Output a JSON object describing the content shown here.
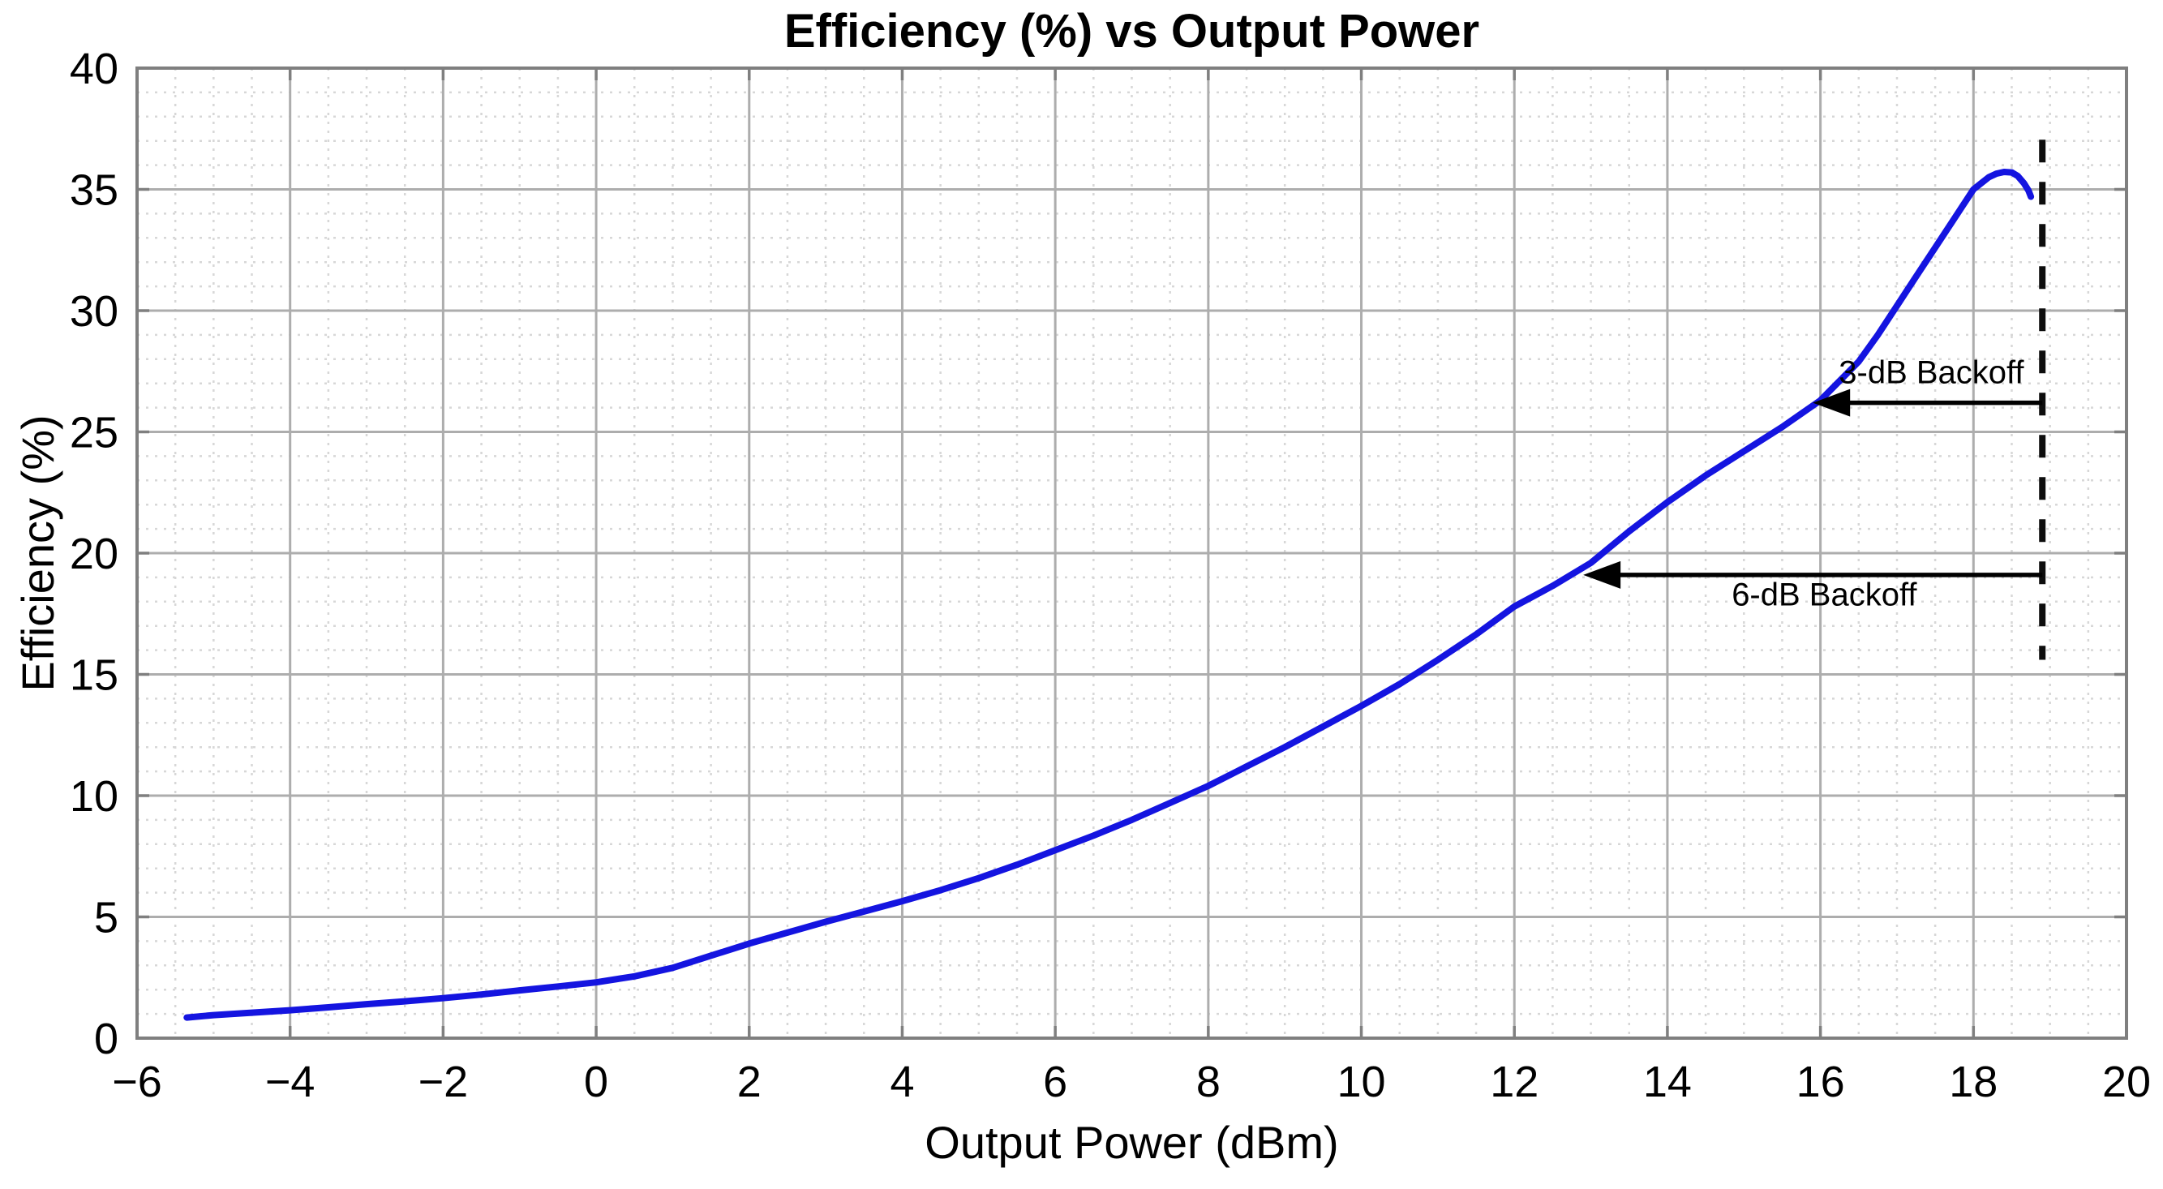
{
  "figure": {
    "background": "#ffffff"
  },
  "chart_data": {
    "type": "line",
    "title": "Efficiency (%) vs Output Power",
    "xlabel": "Output Power (dBm)",
    "ylabel": "Efficiency (%)",
    "xlim": [
      -6,
      20
    ],
    "ylim": [
      0,
      40
    ],
    "x_ticks": [
      -6,
      -4,
      -2,
      0,
      2,
      4,
      6,
      8,
      10,
      12,
      14,
      16,
      18,
      20
    ],
    "x_tick_labels": [
      "−6",
      "−4",
      "−2",
      "0",
      "2",
      "4",
      "6",
      "8",
      "10",
      "12",
      "14",
      "16",
      "18",
      "20"
    ],
    "y_ticks": [
      0,
      5,
      10,
      15,
      20,
      25,
      30,
      35,
      40
    ],
    "y_tick_labels": [
      "0",
      "5",
      "10",
      "15",
      "20",
      "25",
      "30",
      "35",
      "40"
    ],
    "x_minor_step": 0.5,
    "y_minor_step": 1,
    "grid": {
      "major": true,
      "minor": true
    },
    "legend": "none",
    "series": [
      {
        "name": "efficiency-curve",
        "color": "#1414e0",
        "line_width": 8,
        "points": [
          [
            -5.35,
            0.85
          ],
          [
            -5,
            0.95
          ],
          [
            -4.5,
            1.05
          ],
          [
            -4,
            1.15
          ],
          [
            -3.5,
            1.27
          ],
          [
            -3,
            1.4
          ],
          [
            -2.5,
            1.52
          ],
          [
            -2,
            1.65
          ],
          [
            -1.5,
            1.8
          ],
          [
            -1,
            1.97
          ],
          [
            -0.5,
            2.13
          ],
          [
            0,
            2.3
          ],
          [
            0.5,
            2.55
          ],
          [
            1,
            2.9
          ],
          [
            1.5,
            3.4
          ],
          [
            2,
            3.9
          ],
          [
            2.5,
            4.35
          ],
          [
            3,
            4.8
          ],
          [
            3.5,
            5.22
          ],
          [
            4,
            5.65
          ],
          [
            4.5,
            6.1
          ],
          [
            5,
            6.6
          ],
          [
            5.5,
            7.15
          ],
          [
            6,
            7.75
          ],
          [
            6.5,
            8.35
          ],
          [
            7,
            9.0
          ],
          [
            7.5,
            9.7
          ],
          [
            8,
            10.4
          ],
          [
            8.5,
            11.2
          ],
          [
            9,
            12.0
          ],
          [
            9.5,
            12.85
          ],
          [
            10,
            13.7
          ],
          [
            10.5,
            14.6
          ],
          [
            11,
            15.6
          ],
          [
            11.5,
            16.65
          ],
          [
            12,
            17.8
          ],
          [
            12.5,
            18.65
          ],
          [
            13,
            19.6
          ],
          [
            13.5,
            20.9
          ],
          [
            14,
            22.1
          ],
          [
            14.5,
            23.2
          ],
          [
            15,
            24.2
          ],
          [
            15.5,
            25.2
          ],
          [
            16,
            26.3
          ],
          [
            16.5,
            27.9
          ],
          [
            16.75,
            29.0
          ],
          [
            17,
            30.2
          ],
          [
            17.25,
            31.4
          ],
          [
            17.5,
            32.6
          ],
          [
            17.75,
            33.8
          ],
          [
            18,
            35.0
          ],
          [
            18.1,
            35.25
          ],
          [
            18.2,
            35.5
          ],
          [
            18.3,
            35.65
          ],
          [
            18.4,
            35.72
          ],
          [
            18.5,
            35.7
          ],
          [
            18.58,
            35.55
          ],
          [
            18.66,
            35.25
          ],
          [
            18.72,
            34.95
          ],
          [
            18.75,
            34.7
          ]
        ]
      }
    ],
    "reference_line": {
      "name": "saturation-line",
      "x": 18.9,
      "y_from": 15.6,
      "y_to": 37.05,
      "style": "dashed",
      "color": "#0d0d0d"
    },
    "annotations": [
      {
        "label": "3-dB Backoff",
        "arrow_y": 26.2,
        "arrow_from_x": 18.9,
        "arrow_to_x": 15.9,
        "text_x": 17.45,
        "text_y": 27.0,
        "text_side": "above"
      },
      {
        "label": "6-dB Backoff",
        "arrow_y": 19.1,
        "arrow_from_x": 18.9,
        "arrow_to_x": 12.9,
        "text_x": 16.05,
        "text_y": 17.85,
        "text_side": "below"
      }
    ],
    "colors": {
      "major_grid": "#adadad",
      "minor_grid": "#d7d7d7",
      "axis_box": "#7f7f7f",
      "text": "#000000",
      "annotation": "#000000"
    }
  }
}
